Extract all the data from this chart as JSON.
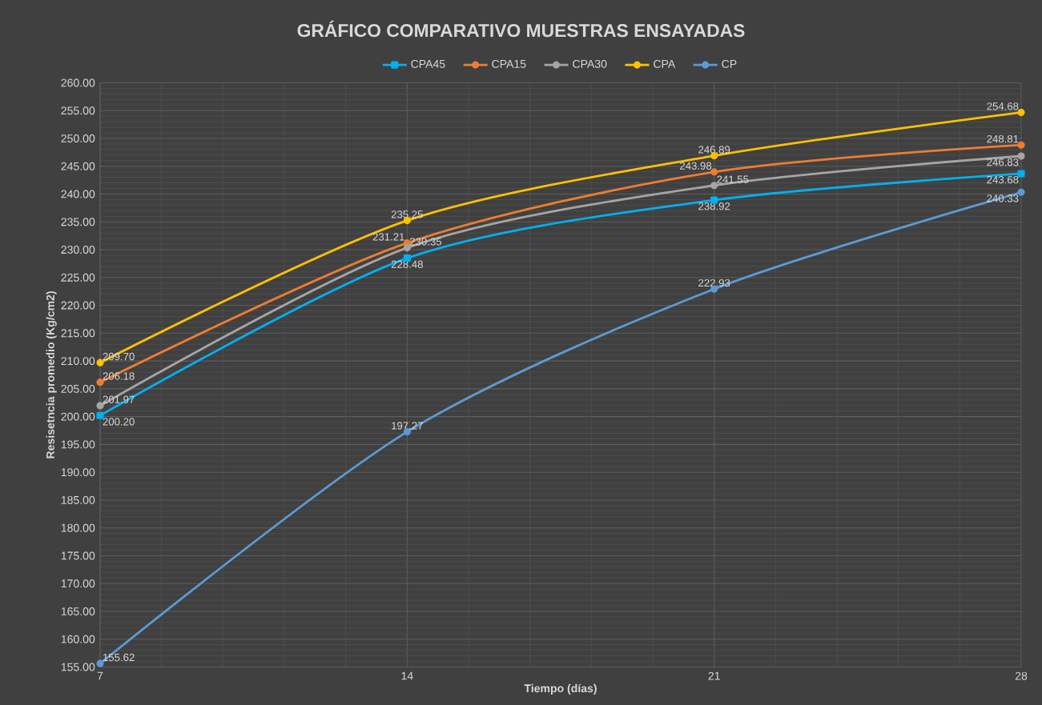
{
  "chart_data": {
    "type": "line",
    "title": "GRÁFICO COMPARATIVO MUESTRAS ENSAYADAS",
    "xlabel": "Tiempo (días)",
    "ylabel": "Resisetncia promedio (Kg/cm2)",
    "x": [
      7,
      14,
      21,
      28
    ],
    "series": [
      {
        "name": "CPA45",
        "color": "#00b0f0",
        "marker": "square",
        "values": [
          200.2,
          228.48,
          238.92,
          243.68
        ],
        "value_labels": [
          "200.20",
          "228.48",
          "238.92",
          "243.68"
        ]
      },
      {
        "name": "CPA15",
        "color": "#ed7d31",
        "marker": "circle",
        "values": [
          206.18,
          231.21,
          243.98,
          248.81
        ],
        "value_labels": [
          "206.18",
          "231.21",
          "243.98",
          "248.81"
        ]
      },
      {
        "name": "CPA30",
        "color": "#a5a5a5",
        "marker": "circle",
        "values": [
          201.97,
          230.35,
          241.55,
          246.83
        ],
        "value_labels": [
          "201.97",
          "230.35",
          "241.55",
          "246.83"
        ]
      },
      {
        "name": "CPA",
        "color": "#ffc000",
        "marker": "circle",
        "values": [
          209.7,
          235.25,
          246.89,
          254.68
        ],
        "value_labels": [
          "209.70",
          "235.25",
          "246.89",
          "254.68"
        ]
      },
      {
        "name": "CP",
        "color": "#5b9bd5",
        "marker": "circle",
        "values": [
          155.62,
          197.27,
          222.93,
          240.33
        ],
        "value_labels": [
          "155.62",
          "197.27",
          "222.93",
          "240.33"
        ]
      }
    ],
    "xlim": [
      7,
      28
    ],
    "xticks": [
      7,
      14,
      21,
      28
    ],
    "ylim": [
      155,
      260
    ],
    "yticks": [
      {
        "value": 155,
        "label": "155.00"
      },
      {
        "value": 160,
        "label": "160.00"
      },
      {
        "value": 165,
        "label": "165.00"
      },
      {
        "value": 170,
        "label": "170.00"
      },
      {
        "value": 175,
        "label": "175.00"
      },
      {
        "value": 180,
        "label": "180.00"
      },
      {
        "value": 185,
        "label": "185.00"
      },
      {
        "value": 190,
        "label": "190.00"
      },
      {
        "value": 195,
        "label": "195.00"
      },
      {
        "value": 200,
        "label": "200.00"
      },
      {
        "value": 205,
        "label": "205.00"
      },
      {
        "value": 210,
        "label": "210.00"
      },
      {
        "value": 215,
        "label": "215.00"
      },
      {
        "value": 220,
        "label": "220.00"
      },
      {
        "value": 225,
        "label": "225.00"
      },
      {
        "value": 230,
        "label": "230.00"
      },
      {
        "value": 235,
        "label": "235.00"
      },
      {
        "value": 240,
        "label": "240.00"
      },
      {
        "value": 245,
        "label": "245.00"
      },
      {
        "value": 250,
        "label": "250.00"
      },
      {
        "value": 255,
        "label": "255.00"
      },
      {
        "value": 260,
        "label": "260.00"
      }
    ],
    "grid": true,
    "legend": "top"
  }
}
